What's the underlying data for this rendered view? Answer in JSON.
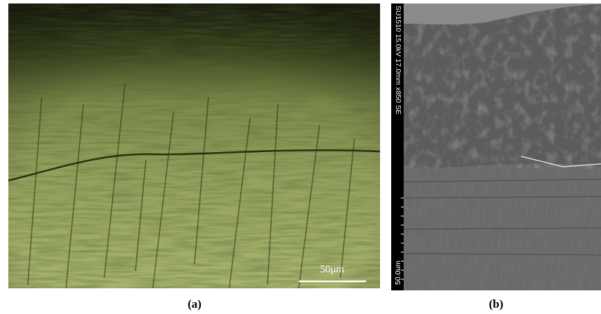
{
  "panels": [
    {
      "label": "(a)",
      "scale_bar": "50μm"
    },
    {
      "label": "(b)",
      "info_strip": "SU1510 15.0kV 17.0mm x850 SE",
      "scale": "50.0um"
    }
  ]
}
